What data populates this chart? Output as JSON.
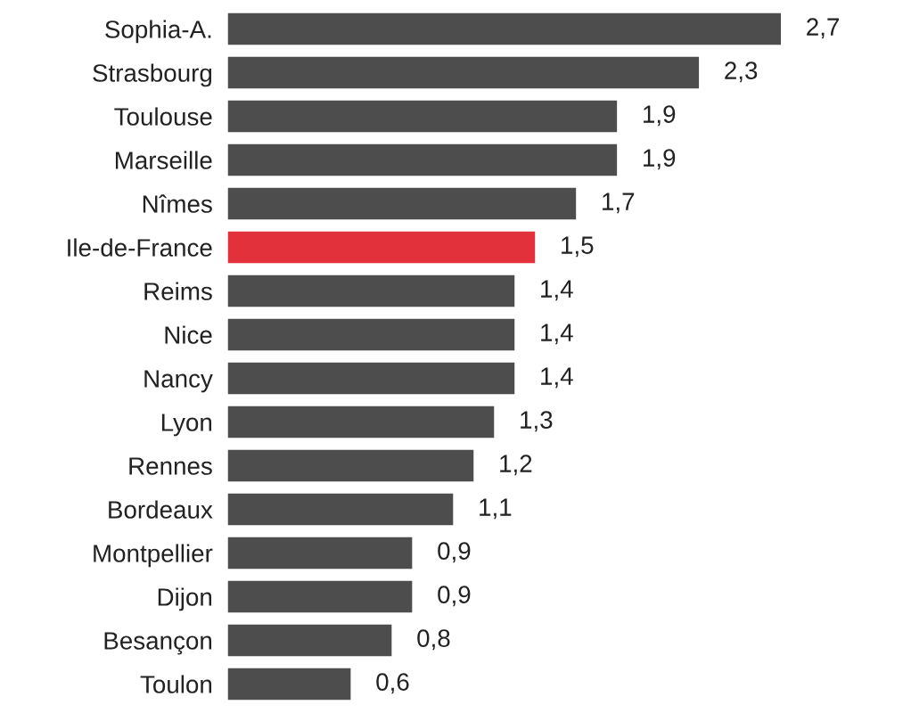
{
  "chart_data": {
    "type": "bar",
    "orientation": "horizontal",
    "categories": [
      "Sophia-A.",
      "Strasbourg",
      "Toulouse",
      "Marseille",
      "Nîmes",
      "Ile-de-France",
      "Reims",
      "Nice",
      "Nancy",
      "Lyon",
      "Rennes",
      "Bordeaux",
      "Montpellier",
      "Dijon",
      "Besançon",
      "Toulon"
    ],
    "values": [
      2.7,
      2.3,
      1.9,
      1.9,
      1.7,
      1.5,
      1.4,
      1.4,
      1.4,
      1.3,
      1.2,
      1.1,
      0.9,
      0.9,
      0.8,
      0.6
    ],
    "colors": [
      "#4d4d4d",
      "#4d4d4d",
      "#4d4d4d",
      "#4d4d4d",
      "#4d4d4d",
      "#e3313b",
      "#4d4d4d",
      "#4d4d4d",
      "#4d4d4d",
      "#4d4d4d",
      "#4d4d4d",
      "#4d4d4d",
      "#4d4d4d",
      "#4d4d4d",
      "#4d4d4d",
      "#4d4d4d"
    ],
    "value_labels": [
      "2,7",
      "2,3",
      "1,9",
      "1,9",
      "1,7",
      "1,5",
      "1,4",
      "1,4",
      "1,4",
      "1,3",
      "1,2",
      "1,1",
      "0,9",
      "0,9",
      "0,8",
      "0,6"
    ]
  }
}
